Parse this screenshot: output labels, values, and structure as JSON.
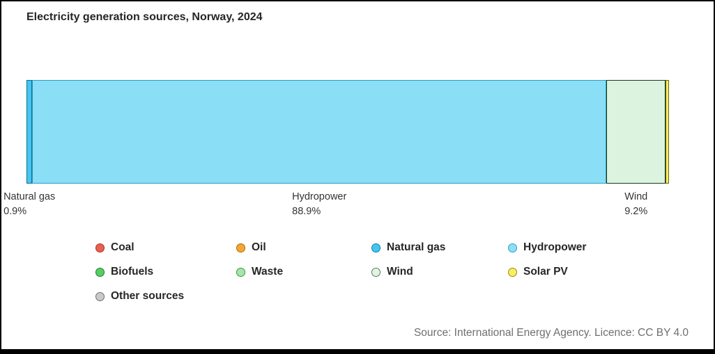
{
  "title": "Electricity generation sources, Norway, 2024",
  "source": "Source: International Energy Agency. Licence: CC BY 4.0",
  "chart_data": {
    "type": "bar",
    "subtype": "stacked-horizontal-single-bar",
    "title": "Electricity generation sources, Norway, 2024",
    "unit": "%",
    "segments": [
      {
        "name": "Natural gas",
        "value": 0.9,
        "fill": "#45c6f2",
        "stroke": "#0e6e93"
      },
      {
        "name": "Hydropower",
        "value": 88.9,
        "fill": "#8adef6",
        "stroke": "#2f9dc0"
      },
      {
        "name": "Wind",
        "value": 9.2,
        "fill": "#dcf3df",
        "stroke": "#123c1a"
      },
      {
        "name": "Solar PV",
        "value": 0.5,
        "fill": "#f7ef5d",
        "stroke": "#6b621a"
      }
    ],
    "bar_labels": [
      {
        "name": "Natural gas",
        "pct": "0.9%"
      },
      {
        "name": "Hydropower",
        "pct": "88.9%"
      },
      {
        "name": "Wind",
        "pct": "9.2%"
      }
    ],
    "legend_position": "bottom",
    "legend": [
      {
        "label": "Coal",
        "fill": "#e8604f",
        "stroke": "#a8341f"
      },
      {
        "label": "Oil",
        "fill": "#f5a733",
        "stroke": "#a66b0d"
      },
      {
        "label": "Natural gas",
        "fill": "#41c6f1",
        "stroke": "#1279a3"
      },
      {
        "label": "Hydropower",
        "fill": "#8ddff7",
        "stroke": "#2f9dc0"
      },
      {
        "label": "Biofuels",
        "fill": "#57cd66",
        "stroke": "#1f7d2c"
      },
      {
        "label": "Waste",
        "fill": "#a5e7a8",
        "stroke": "#3f8f49"
      },
      {
        "label": "Wind",
        "fill": "#dff5e2",
        "stroke": "#57795c"
      },
      {
        "label": "Solar PV",
        "fill": "#f7ef5d",
        "stroke": "#98891c"
      },
      {
        "label": "Other sources",
        "fill": "#c9c9c9",
        "stroke": "#6e6e6e"
      }
    ]
  }
}
